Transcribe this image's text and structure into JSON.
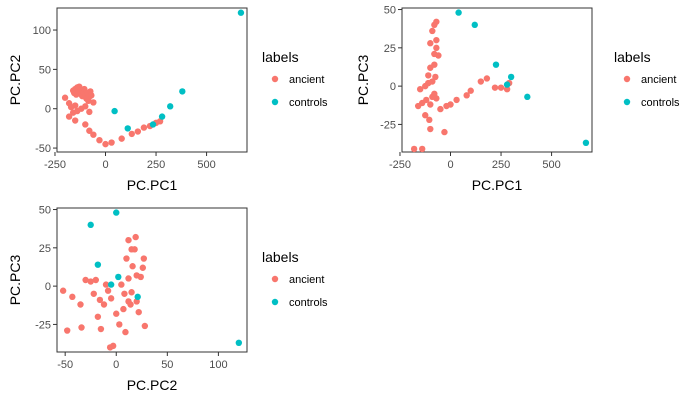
{
  "chart_data": [
    {
      "type": "scatter",
      "xlabel": "PC.PC1",
      "ylabel": "PC.PC2",
      "xlim": [
        -240,
        700
      ],
      "ylim": [
        -55,
        128
      ],
      "xticks": [
        -250,
        0,
        250,
        500
      ],
      "yticks": [
        -50,
        0,
        50,
        100
      ],
      "grid": false,
      "legend": {
        "title": "labels",
        "position": "right",
        "entries": [
          "ancient",
          "controls"
        ]
      },
      "series": [
        {
          "name": "ancient",
          "color": "#F8766D",
          "points": [
            [
              -200,
              14
            ],
            [
              -180,
              7
            ],
            [
              -160,
              23
            ],
            [
              -155,
              20
            ],
            [
              -150,
              25
            ],
            [
              -145,
              18
            ],
            [
              -140,
              27
            ],
            [
              -135,
              22
            ],
            [
              -130,
              28
            ],
            [
              -125,
              19
            ],
            [
              -120,
              24
            ],
            [
              -115,
              16
            ],
            [
              -110,
              21
            ],
            [
              -105,
              25
            ],
            [
              -100,
              18
            ],
            [
              -95,
              13
            ],
            [
              -90,
              20
            ],
            [
              -85,
              10
            ],
            [
              -80,
              15
            ],
            [
              -75,
              22
            ],
            [
              -70,
              17
            ],
            [
              -60,
              8
            ],
            [
              -170,
              2
            ],
            [
              -150,
              4
            ],
            [
              -140,
              -3
            ],
            [
              -120,
              0
            ],
            [
              -100,
              3
            ],
            [
              -80,
              -4
            ],
            [
              -180,
              -10
            ],
            [
              -160,
              -5
            ],
            [
              -150,
              -15
            ],
            [
              -100,
              -20
            ],
            [
              -80,
              -28
            ],
            [
              -60,
              -33
            ],
            [
              -30,
              -40
            ],
            [
              0,
              -45
            ],
            [
              30,
              -43
            ],
            [
              80,
              -38
            ],
            [
              130,
              -32
            ],
            [
              160,
              -29
            ],
            [
              190,
              -24
            ],
            [
              220,
              -22
            ],
            [
              250,
              -18
            ],
            [
              270,
              -16
            ]
          ]
        },
        {
          "name": "controls",
          "color": "#00BFC4",
          "points": [
            [
              670,
              122
            ],
            [
              380,
              22
            ],
            [
              320,
              3
            ],
            [
              280,
              -10
            ],
            [
              235,
              -20
            ],
            [
              110,
              -25
            ],
            [
              45,
              -3
            ]
          ]
        }
      ]
    },
    {
      "type": "scatter",
      "xlabel": "PC.PC1",
      "ylabel": "PC.PC3",
      "xlim": [
        -240,
        700
      ],
      "ylim": [
        -43,
        51
      ],
      "xticks": [
        -250,
        0,
        250,
        500
      ],
      "yticks": [
        -25,
        0,
        25,
        50
      ],
      "grid": false,
      "legend": {
        "title": "labels",
        "position": "right",
        "entries": [
          "ancient",
          "controls"
        ]
      },
      "series": [
        {
          "name": "ancient",
          "color": "#F8766D",
          "points": [
            [
              -180,
              -41
            ],
            [
              -140,
              -41
            ],
            [
              -160,
              -13
            ],
            [
              -140,
              -11
            ],
            [
              -120,
              -9
            ],
            [
              -125,
              -19
            ],
            [
              -105,
              -22
            ],
            [
              -100,
              -28
            ],
            [
              -100,
              -12
            ],
            [
              -90,
              -7
            ],
            [
              -80,
              -5
            ],
            [
              -70,
              -8
            ],
            [
              -150,
              -2
            ],
            [
              -125,
              0
            ],
            [
              -110,
              2
            ],
            [
              -90,
              3
            ],
            [
              -75,
              6
            ],
            [
              -110,
              7
            ],
            [
              -100,
              12
            ],
            [
              -80,
              14
            ],
            [
              -80,
              21
            ],
            [
              -70,
              25
            ],
            [
              -100,
              28
            ],
            [
              -90,
              36
            ],
            [
              -70,
              30
            ],
            [
              -80,
              40
            ],
            [
              -70,
              42
            ],
            [
              -60,
              20
            ],
            [
              -50,
              -15
            ],
            [
              -30,
              -30
            ],
            [
              -20,
              -13
            ],
            [
              0,
              -12
            ],
            [
              30,
              -9
            ],
            [
              80,
              -6
            ],
            [
              100,
              -3
            ],
            [
              150,
              3
            ],
            [
              180,
              5
            ],
            [
              220,
              -1
            ],
            [
              250,
              -1
            ],
            [
              280,
              -2
            ],
            [
              290,
              2
            ]
          ]
        },
        {
          "name": "controls",
          "color": "#00BFC4",
          "points": [
            [
              40,
              48
            ],
            [
              120,
              40
            ],
            [
              225,
              14
            ],
            [
              300,
              6
            ],
            [
              280,
              1
            ],
            [
              380,
              -7
            ],
            [
              670,
              -37
            ]
          ]
        }
      ]
    },
    {
      "type": "scatter",
      "xlabel": "PC.PC2",
      "ylabel": "PC.PC3",
      "xlim": [
        -58,
        128
      ],
      "ylim": [
        -43,
        51
      ],
      "xticks": [
        -50,
        0,
        50,
        100
      ],
      "yticks": [
        -25,
        0,
        25,
        50
      ],
      "grid": false,
      "legend": {
        "title": "labels",
        "position": "right",
        "entries": [
          "ancient",
          "controls"
        ]
      },
      "series": [
        {
          "name": "ancient",
          "color": "#F8766D",
          "points": [
            [
              -52,
              -3
            ],
            [
              -48,
              -29
            ],
            [
              -43,
              -7
            ],
            [
              -35,
              -12
            ],
            [
              -30,
              4
            ],
            [
              -25,
              3
            ],
            [
              -20,
              4
            ],
            [
              -22,
              -5
            ],
            [
              -18,
              -20
            ],
            [
              -16,
              -9
            ],
            [
              -15,
              -28
            ],
            [
              -12,
              -12
            ],
            [
              -10,
              1
            ],
            [
              -8,
              -3
            ],
            [
              -6,
              -40
            ],
            [
              -3,
              -39
            ],
            [
              -5,
              -8
            ],
            [
              0,
              -18
            ],
            [
              3,
              -25
            ],
            [
              5,
              1
            ],
            [
              7,
              -15
            ],
            [
              8,
              -5
            ],
            [
              9,
              -30
            ],
            [
              10,
              18
            ],
            [
              12,
              30
            ],
            [
              12,
              5
            ],
            [
              14,
              -12
            ],
            [
              15,
              -4
            ],
            [
              16,
              13
            ],
            [
              18,
              24
            ],
            [
              19,
              32
            ],
            [
              20,
              -10
            ],
            [
              22,
              -17
            ],
            [
              24,
              6
            ],
            [
              26,
              12
            ],
            [
              27,
              18
            ],
            [
              28,
              -26
            ],
            [
              20,
              7
            ],
            [
              15,
              24
            ],
            [
              -34,
              -27
            ],
            [
              12,
              -10
            ]
          ]
        },
        {
          "name": "controls",
          "color": "#00BFC4",
          "points": [
            [
              0,
              48
            ],
            [
              -25,
              40
            ],
            [
              -18,
              14
            ],
            [
              -5,
              1
            ],
            [
              2,
              6
            ],
            [
              21,
              -7
            ],
            [
              120,
              -37
            ]
          ]
        }
      ]
    }
  ]
}
